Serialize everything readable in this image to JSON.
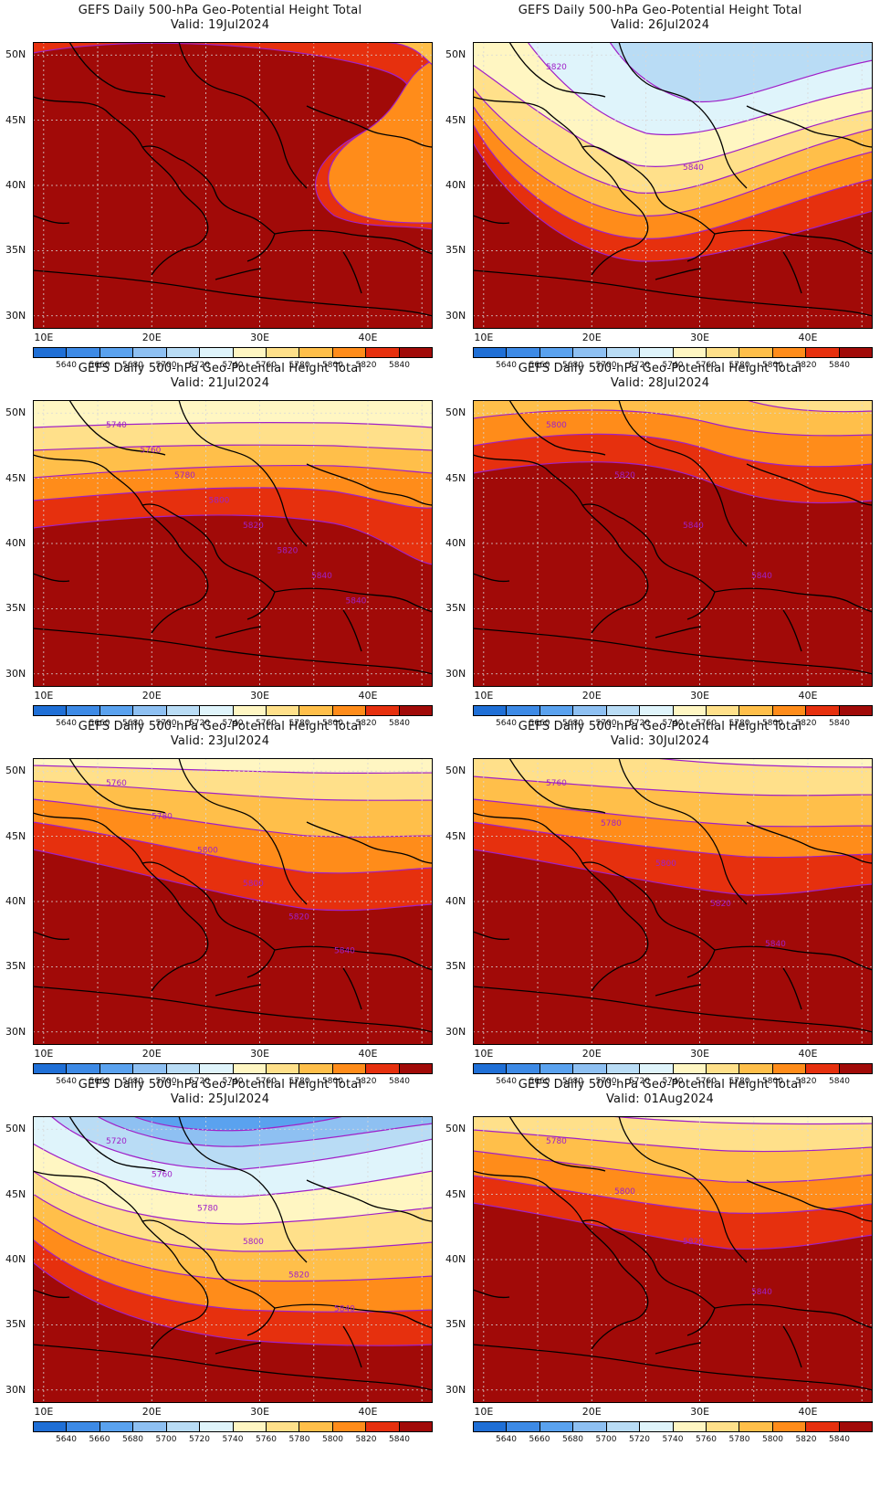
{
  "panels": [
    {
      "title": "GEFS Daily 500-hPa Geo-Potential Height Total",
      "valid": "Valid:  19Jul2024",
      "col": 0,
      "row": 0,
      "contours": [
        {
          "v": 5840,
          "s": 0.1
        },
        {
          "v": 5840,
          "s": 0.15,
          "ridge": "east"
        }
      ],
      "labels": []
    },
    {
      "title": "GEFS Daily 500-hPa Geo-Potential Height Total",
      "valid": "Valid:  26Jul2024",
      "col": 1,
      "row": 0,
      "contours": [],
      "labels": [
        "5820",
        "5840"
      ]
    },
    {
      "title": "GEFS Daily 500-hPa Geo-Potential Height Total",
      "valid": "Valid:  21Jul2024",
      "col": 0,
      "row": 1,
      "contours": [],
      "labels": [
        "5740",
        "5760",
        "5780",
        "5800",
        "5820",
        "5820",
        "5840",
        "5840"
      ]
    },
    {
      "title": "GEFS Daily 500-hPa Geo-Potential Height Total",
      "valid": "Valid:  28Jul2024",
      "col": 1,
      "row": 1,
      "contours": [],
      "labels": [
        "5800",
        "5820",
        "5840",
        "5840"
      ]
    },
    {
      "title": "GEFS Daily 500-hPa Geo-Potential Height Total",
      "valid": "Valid:  23Jul2024",
      "col": 0,
      "row": 2,
      "contours": [],
      "labels": [
        "5760",
        "5780",
        "5800",
        "5800",
        "5820",
        "5840"
      ]
    },
    {
      "title": "GEFS Daily 500-hPa Geo-Potential Height Total",
      "valid": "Valid:  30Jul2024",
      "col": 1,
      "row": 2,
      "contours": [],
      "labels": [
        "5760",
        "5780",
        "5800",
        "5820",
        "5840"
      ]
    },
    {
      "title": "GEFS Daily 500-hPa Geo-Potential Height Total",
      "valid": "Valid:  25Jul2024",
      "col": 0,
      "row": 3,
      "contours": [],
      "labels": [
        "5720",
        "5760",
        "5780",
        "5800",
        "5820",
        "5840"
      ]
    },
    {
      "title": "GEFS Daily 500-hPa Geo-Potential Height Total",
      "valid": "Valid:  01Aug2024",
      "col": 1,
      "row": 3,
      "contours": [],
      "labels": [
        "5780",
        "5800",
        "5820",
        "5840"
      ]
    }
  ],
  "axes": {
    "lat_ticks": [
      "50N",
      "45N",
      "40N",
      "35N",
      "30N"
    ],
    "lon_ticks": [
      "10E",
      "20E",
      "30E",
      "40E"
    ],
    "lat_range": [
      29,
      51
    ],
    "lon_range": [
      9,
      46
    ]
  },
  "colorbar": {
    "labels": [
      "5640",
      "5660",
      "5680",
      "5700",
      "5720",
      "5740",
      "5760",
      "5780",
      "5800",
      "5820",
      "5840"
    ],
    "colors": [
      "#1f6fd6",
      "#3d8ae6",
      "#5aa2ef",
      "#8ec0f2",
      "#b9dcf5",
      "#dff4fb",
      "#fff6c2",
      "#ffe08a",
      "#ffbf4a",
      "#ff8c1a",
      "#e6300e",
      "#a10a08"
    ]
  },
  "contour_color": "#a020c8"
}
